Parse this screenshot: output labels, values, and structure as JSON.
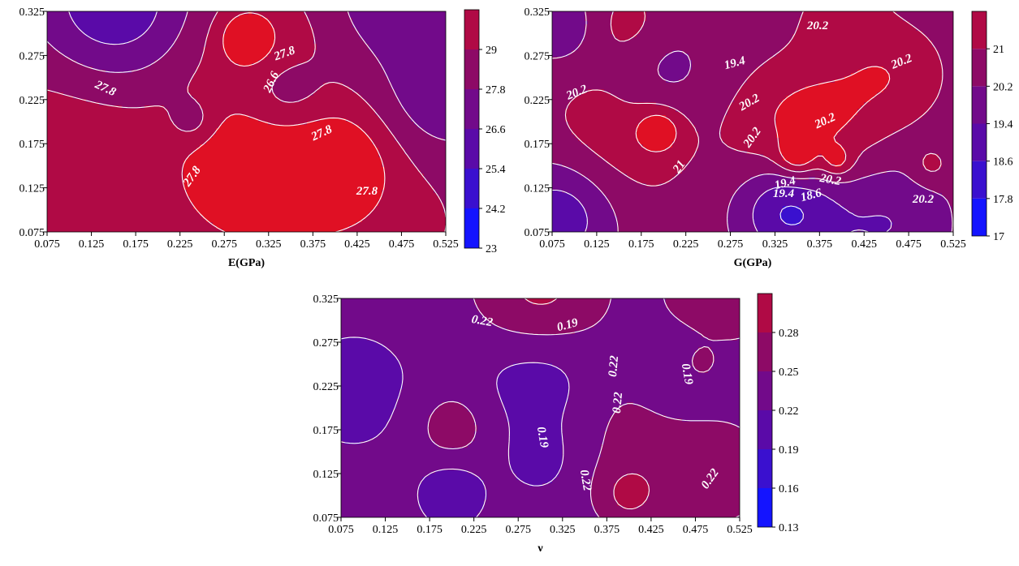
{
  "chart_data": [
    {
      "type": "heatmap",
      "subtype": "filled-contour",
      "xlabel": "E(GPa)",
      "ylabel": "",
      "x_ticks": [
        "0.075",
        "0.125",
        "0.175",
        "0.225",
        "0.275",
        "0.325",
        "0.375",
        "0.425",
        "0.475",
        "0.525"
      ],
      "y_ticks": [
        "0.075",
        "0.125",
        "0.175",
        "0.225",
        "0.275",
        "0.325"
      ],
      "xlim": [
        0.075,
        0.525
      ],
      "ylim": [
        0.075,
        0.325
      ],
      "colorbar": {
        "levels": [
          "23",
          "24.2",
          "25.4",
          "26.6",
          "27.8",
          "29"
        ],
        "min": 23,
        "max": 30.2,
        "colors": [
          "#1414ff",
          "#3a10cf",
          "#5a0aa8",
          "#720a8a",
          "#8d0a66",
          "#b00a45",
          "#e01024"
        ]
      },
      "contour_labels": [
        "27.8",
        "27.8",
        "27.8",
        "26.6",
        "27.8",
        "27.8"
      ],
      "baseline_value": 27.2,
      "features": [
        {
          "x": 0.3,
          "y": 0.14,
          "value": 29.6,
          "spread": 0.05
        },
        {
          "x": 0.4,
          "y": 0.15,
          "value": 29.4,
          "spread": 0.04
        },
        {
          "x": 0.3,
          "y": 0.295,
          "value": 29.4,
          "spread": 0.02
        },
        {
          "x": 0.1,
          "y": 0.165,
          "value": 28.6,
          "spread": 0.09
        },
        {
          "x": 0.39,
          "y": 0.12,
          "value": 28.6,
          "spread": 0.11
        },
        {
          "x": 0.32,
          "y": 0.285,
          "value": 28.4,
          "spread": 0.06
        },
        {
          "x": 0.345,
          "y": 0.23,
          "value": 25.7,
          "spread": 0.035
        },
        {
          "x": 0.24,
          "y": 0.2,
          "value": 26.0,
          "spread": 0.018
        },
        {
          "x": 0.52,
          "y": 0.23,
          "value": 25.2,
          "spread": 0.05
        },
        {
          "x": 0.15,
          "y": 0.33,
          "value": 24.2,
          "spread": 0.06
        },
        {
          "x": 0.45,
          "y": 0.33,
          "value": 25.8,
          "spread": 0.05
        }
      ]
    },
    {
      "type": "heatmap",
      "subtype": "filled-contour",
      "xlabel": "G(GPa)",
      "ylabel": "",
      "x_ticks": [
        "0.075",
        "0.125",
        "0.175",
        "0.225",
        "0.275",
        "0.325",
        "0.375",
        "0.425",
        "0.475",
        "0.525"
      ],
      "y_ticks": [
        "0.075",
        "0.125",
        "0.175",
        "0.225",
        "0.275",
        "0.325"
      ],
      "xlim": [
        0.075,
        0.525
      ],
      "ylim": [
        0.075,
        0.325
      ],
      "colorbar": {
        "levels": [
          "17",
          "17.8",
          "18.6",
          "19.4",
          "20.2",
          "21"
        ],
        "min": 17,
        "max": 21.8,
        "colors": [
          "#1414ff",
          "#3a10cf",
          "#5a0aa8",
          "#720a8a",
          "#8d0a66",
          "#b00a45",
          "#e01024"
        ]
      },
      "contour_labels": [
        "20.2",
        "19.4",
        "20.2",
        "20.2",
        "20.2",
        "20.2",
        "21",
        "20.2",
        "19.4",
        "18.6",
        "20.2",
        "19.4",
        "20.2"
      ],
      "baseline_value": 19.8,
      "features": [
        {
          "x": 0.15,
          "y": 0.18,
          "value": 20.7,
          "spread": 0.06
        },
        {
          "x": 0.195,
          "y": 0.19,
          "value": 21.3,
          "spread": 0.018
        },
        {
          "x": 0.34,
          "y": 0.19,
          "value": 20.8,
          "spread": 0.05
        },
        {
          "x": 0.35,
          "y": 0.16,
          "value": 21.3,
          "spread": 0.015
        },
        {
          "x": 0.395,
          "y": 0.155,
          "value": 21.0,
          "spread": 0.012
        },
        {
          "x": 0.39,
          "y": 0.21,
          "value": 20.6,
          "spread": 0.05
        },
        {
          "x": 0.46,
          "y": 0.255,
          "value": 20.7,
          "spread": 0.04
        },
        {
          "x": 0.4,
          "y": 0.32,
          "value": 20.5,
          "spread": 0.035
        },
        {
          "x": 0.16,
          "y": 0.31,
          "value": 20.5,
          "spread": 0.03
        },
        {
          "x": 0.2,
          "y": 0.255,
          "value": 19.0,
          "spread": 0.04
        },
        {
          "x": 0.34,
          "y": 0.1,
          "value": 17.6,
          "spread": 0.04
        },
        {
          "x": 0.45,
          "y": 0.085,
          "value": 18.6,
          "spread": 0.05
        },
        {
          "x": 0.085,
          "y": 0.095,
          "value": 18.0,
          "spread": 0.045
        },
        {
          "x": 0.08,
          "y": 0.31,
          "value": 18.6,
          "spread": 0.03
        },
        {
          "x": 0.5,
          "y": 0.15,
          "value": 20.6,
          "spread": 0.015
        }
      ]
    },
    {
      "type": "heatmap",
      "subtype": "filled-contour",
      "xlabel": "ν",
      "ylabel": "",
      "x_ticks": [
        "0.075",
        "0.125",
        "0.175",
        "0.225",
        "0.275",
        "0.325",
        "0.375",
        "0.425",
        "0.475",
        "0.525"
      ],
      "y_ticks": [
        "0.075",
        "0.125",
        "0.175",
        "0.225",
        "0.275",
        "0.325"
      ],
      "xlim": [
        0.075,
        0.525
      ],
      "ylim": [
        0.075,
        0.325
      ],
      "colorbar": {
        "levels": [
          "0.13",
          "0.16",
          "0.19",
          "0.22",
          "0.25",
          "0.28"
        ],
        "min": 0.13,
        "max": 0.31,
        "colors": [
          "#1414ff",
          "#3a10cf",
          "#5a0aa8",
          "#720a8a",
          "#8d0a66",
          "#b00a45",
          "#e01024"
        ]
      },
      "contour_labels": [
        "0.22",
        "0.19",
        "0.22",
        "0.22",
        "0.19",
        "0.19",
        "0.22",
        "0.22"
      ],
      "baseline_value": 0.205,
      "features": [
        {
          "x": 0.3,
          "y": 0.235,
          "value": 0.17,
          "spread": 0.05
        },
        {
          "x": 0.3,
          "y": 0.14,
          "value": 0.18,
          "spread": 0.03
        },
        {
          "x": 0.46,
          "y": 0.24,
          "value": 0.175,
          "spread": 0.035
        },
        {
          "x": 0.09,
          "y": 0.22,
          "value": 0.18,
          "spread": 0.06
        },
        {
          "x": 0.2,
          "y": 0.1,
          "value": 0.16,
          "spread": 0.025
        },
        {
          "x": 0.3,
          "y": 0.33,
          "value": 0.26,
          "spread": 0.05
        },
        {
          "x": 0.2,
          "y": 0.18,
          "value": 0.24,
          "spread": 0.03
        },
        {
          "x": 0.4,
          "y": 0.1,
          "value": 0.25,
          "spread": 0.025
        },
        {
          "x": 0.41,
          "y": 0.18,
          "value": 0.23,
          "spread": 0.06
        },
        {
          "x": 0.5,
          "y": 0.125,
          "value": 0.24,
          "spread": 0.04
        },
        {
          "x": 0.48,
          "y": 0.25,
          "value": 0.24,
          "spread": 0.015
        },
        {
          "x": 0.5,
          "y": 0.33,
          "value": 0.25,
          "spread": 0.04
        }
      ]
    }
  ]
}
